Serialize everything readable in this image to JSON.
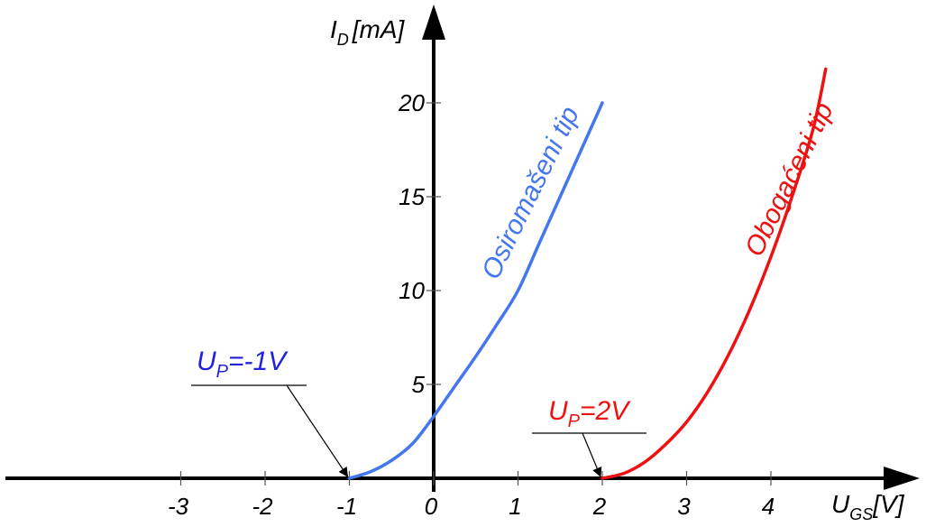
{
  "chart_data": {
    "type": "line",
    "title": "",
    "x_axis": {
      "label_main": "U",
      "label_sub": "GS",
      "label_unit": "[V]",
      "range": [
        -4.8,
        5.6
      ],
      "ticks": [
        -3,
        -2,
        -1,
        0,
        1,
        2,
        3,
        4
      ],
      "tick_labels": [
        "-3",
        "-2",
        "-1",
        "0",
        "1",
        "2",
        "3",
        "4"
      ]
    },
    "y_axis": {
      "label_main": "I",
      "label_sub": "D",
      "label_unit": "[mA]",
      "range": [
        -0.3,
        23.5
      ],
      "ticks": [
        5,
        10,
        15,
        20
      ],
      "tick_labels": [
        "5",
        "10",
        "15",
        "20"
      ]
    },
    "grid": false,
    "series": [
      {
        "name": "Osiromašeni tip",
        "color": "#4477ee",
        "x": [
          -1.0,
          -0.75,
          -0.5,
          -0.25,
          0.0,
          0.25,
          0.5,
          0.75,
          1.0,
          1.25,
          1.5,
          1.75,
          2.0
        ],
        "y": [
          0.0,
          0.35,
          0.95,
          1.85,
          3.3,
          4.9,
          6.5,
          8.2,
          10.0,
          12.5,
          15.0,
          17.5,
          20.0
        ]
      },
      {
        "name": "Obogaćeni tip",
        "color": "#ee1111",
        "x": [
          2.0,
          2.25,
          2.5,
          2.75,
          3.0,
          3.25,
          3.5,
          3.75,
          4.0,
          4.25,
          4.5,
          4.65
        ],
        "y": [
          0.0,
          0.25,
          0.85,
          1.8,
          3.0,
          4.6,
          6.6,
          9.0,
          11.8,
          15.0,
          18.6,
          21.8
        ]
      }
    ],
    "annotations": [
      {
        "main": "U",
        "sub": "P",
        "rest": "=-1V",
        "color": "#2222dd",
        "points_to": [
          -1,
          0
        ]
      },
      {
        "main": "U",
        "sub": "P",
        "rest": "=2V",
        "color": "#ee1111",
        "points_to": [
          2,
          0
        ]
      }
    ]
  }
}
